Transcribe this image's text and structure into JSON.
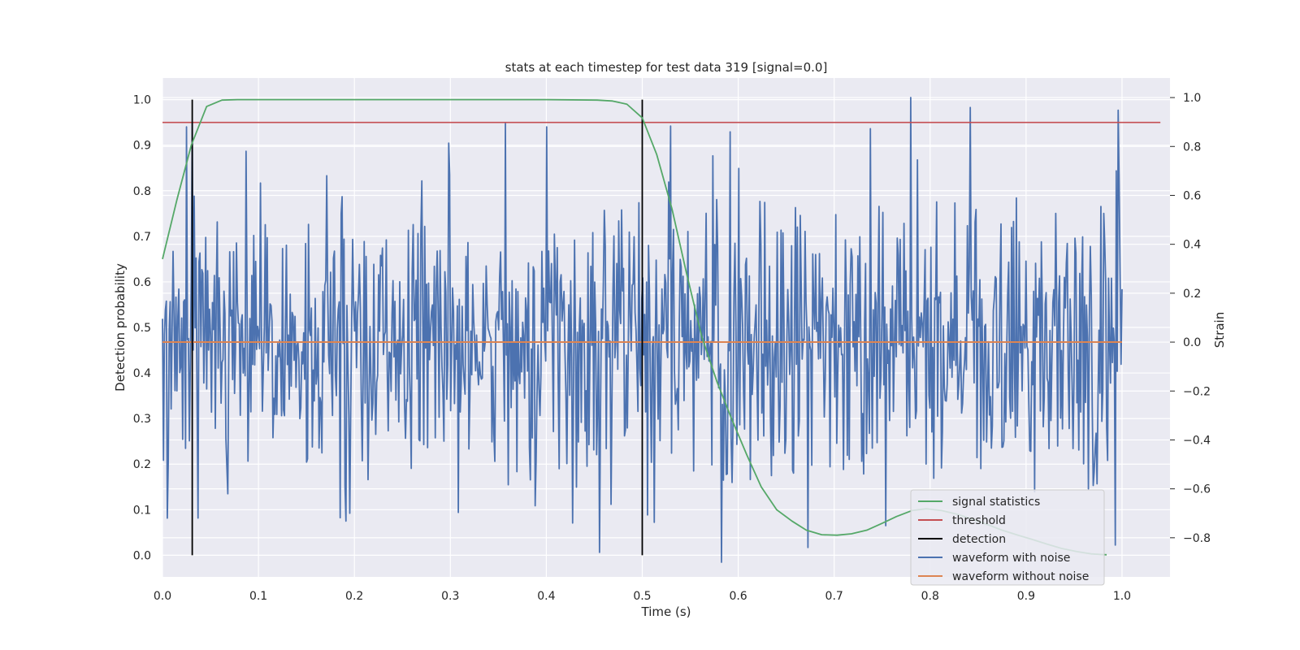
{
  "chart_data": {
    "type": "line",
    "title": "stats at each timestep for test data 319 [signal=0.0]",
    "xlabel": "Time (s)",
    "ylabel_left": "Detection probability",
    "ylabel_right": "Strain",
    "xlim": [
      0.0,
      1.05
    ],
    "ylim_left": [
      -0.0475,
      1.0475
    ],
    "ylim_right": [
      -0.96,
      1.08
    ],
    "grid": true,
    "legend_position": "lower-right",
    "x_ticks": [
      0.0,
      0.1,
      0.2,
      0.3,
      0.4,
      0.5,
      0.6,
      0.7,
      0.8,
      0.9,
      1.0
    ],
    "x_tick_labels": [
      "0.0",
      "0.1",
      "0.2",
      "0.3",
      "0.4",
      "0.5",
      "0.6",
      "0.7",
      "0.8",
      "0.9",
      "1.0"
    ],
    "y_left_ticks": [
      0.0,
      0.1,
      0.2,
      0.3,
      0.4,
      0.5,
      0.6,
      0.7,
      0.8,
      0.9,
      1.0
    ],
    "y_left_tick_labels": [
      "0.0",
      "0.1",
      "0.2",
      "0.3",
      "0.4",
      "0.5",
      "0.6",
      "0.7",
      "0.8",
      "0.9",
      "1.0"
    ],
    "y_right_ticks": [
      -0.8,
      -0.6,
      -0.4,
      -0.2,
      0.0,
      0.2,
      0.4,
      0.6,
      0.8,
      1.0
    ],
    "y_right_tick_labels": [
      "−0.8",
      "−0.6",
      "−0.4",
      "−0.2",
      "0.0",
      "0.2",
      "0.4",
      "0.6",
      "0.8",
      "1.0"
    ],
    "series": [
      {
        "name": "signal statistics",
        "axis": "left",
        "color": "#55a868",
        "x": [
          0.0,
          0.015,
          0.03,
          0.046,
          0.062,
          0.078,
          0.2,
          0.3,
          0.4,
          0.453,
          0.469,
          0.484,
          0.5,
          0.515,
          0.531,
          0.546,
          0.562,
          0.578,
          0.593,
          0.609,
          0.624,
          0.64,
          0.656,
          0.671,
          0.687,
          0.703,
          0.718,
          0.734,
          0.75,
          0.765,
          0.781,
          0.796,
          0.812,
          0.828,
          0.843,
          0.859,
          0.875,
          0.89,
          0.906,
          0.921,
          0.937,
          0.953,
          0.968,
          0.984
        ],
        "y": [
          0.65,
          0.78,
          0.9,
          0.985,
          0.999,
          1.0,
          1.0,
          1.0,
          1.0,
          0.999,
          0.997,
          0.99,
          0.96,
          0.88,
          0.76,
          0.62,
          0.48,
          0.38,
          0.3,
          0.22,
          0.15,
          0.1,
          0.075,
          0.055,
          0.045,
          0.044,
          0.047,
          0.055,
          0.07,
          0.085,
          0.098,
          0.102,
          0.098,
          0.09,
          0.08,
          0.068,
          0.055,
          0.045,
          0.035,
          0.025,
          0.015,
          0.008,
          0.003,
          0.001
        ]
      },
      {
        "name": "threshold",
        "axis": "left",
        "color": "#c44e52",
        "x": [
          0.0,
          1.04
        ],
        "y": [
          0.95,
          0.95
        ]
      },
      {
        "name": "detection",
        "axis": "left",
        "color": "#000000",
        "type": "vlines",
        "x": [
          0.031,
          0.5
        ],
        "y_range": [
          0.0,
          1.0
        ]
      },
      {
        "name": "waveform with noise",
        "axis": "right",
        "color": "#4c72b0",
        "x_range": [
          0.0,
          1.0
        ],
        "points": 1000,
        "y_sd": 0.29,
        "y_peaks": [
          {
            "x": 0.025,
            "y": 0.88
          },
          {
            "x": 0.005,
            "y": -0.72
          },
          {
            "x": 0.4,
            "y": 0.88
          },
          {
            "x": 0.455,
            "y": -0.86
          },
          {
            "x": 0.583,
            "y": -0.9
          },
          {
            "x": 0.592,
            "y": 0.86
          },
          {
            "x": 0.78,
            "y": 1.0
          },
          {
            "x": 0.195,
            "y": -0.7
          },
          {
            "x": 0.997,
            "y": 0.65
          },
          {
            "x": 0.993,
            "y": -0.83
          }
        ]
      },
      {
        "name": "waveform without noise",
        "axis": "right",
        "color": "#dd8452",
        "x": [
          0.0,
          1.0
        ],
        "y": [
          0.0,
          0.0
        ]
      }
    ]
  }
}
